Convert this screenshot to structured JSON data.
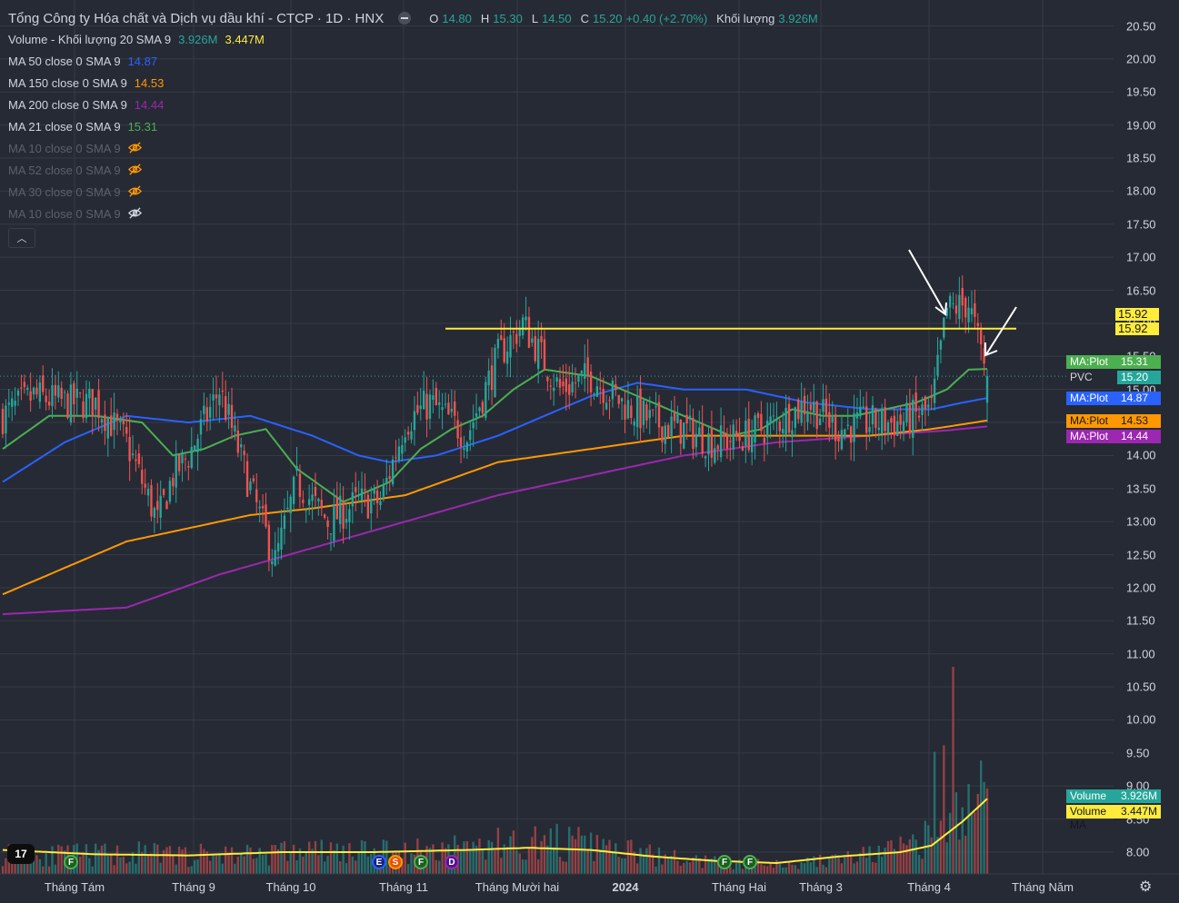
{
  "header": {
    "title": "Tổng Công ty Hóa chất và Dịch vụ dầu khí - CTCP · 1D · HNX",
    "open_label": "O",
    "open": "14.80",
    "high_label": "H",
    "high": "15.30",
    "low_label": "L",
    "low": "14.50",
    "close_label": "C",
    "close": "15.20",
    "change": "+0.40 (+2.70%)",
    "volume_label": "Khối lượng",
    "volume": "3.926M"
  },
  "indicators": [
    {
      "name": "Volume - Khối lượng 20 SMA 9",
      "v1": "3.926M",
      "c1": "#26a69a",
      "v2": "3.447M",
      "c2": "#ffeb3b"
    },
    {
      "name": "MA 50 close 0 SMA 9",
      "v1": "14.87",
      "c1": "#2962ff"
    },
    {
      "name": "MA 150 close 0 SMA 9",
      "v1": "14.53",
      "c1": "#ff9800"
    },
    {
      "name": "MA 200 close 0 SMA 9",
      "v1": "14.44",
      "c1": "#9c27b0"
    },
    {
      "name": "MA 21 close 0 SMA 9",
      "v1": "15.31",
      "c1": "#4caf50"
    }
  ],
  "hidden_indicators": [
    {
      "name": "MA 10 close 0 SMA 9",
      "icon": "eye-off-icon",
      "color": "#ff9800"
    },
    {
      "name": "MA 52 close 0 SMA 9",
      "icon": "eye-off-icon",
      "color": "#ff9800"
    },
    {
      "name": "MA 30 close 0 SMA 9",
      "icon": "eye-off-icon",
      "color": "#ff9800"
    },
    {
      "name": "MA 10 close 0 SMA 9",
      "icon": "eye-off-icon",
      "color": "#d1d4dc"
    }
  ],
  "tags": {
    "ma21": {
      "k": "MA:Plot",
      "v": "15.31"
    },
    "pvc": {
      "k": "PVC",
      "v": "15.20"
    },
    "ma50": {
      "k": "MA:Plot",
      "v": "14.87"
    },
    "ma150": {
      "k": "MA:Plot",
      "v": "14.53"
    },
    "ma200": {
      "k": "MA:Plot",
      "v": "14.44"
    },
    "hline1": "15.92",
    "hline2": "15.92",
    "volume": {
      "k": "Volume",
      "v": "3.926M"
    },
    "volume_ma": {
      "k": "Volume MA",
      "v": "3.447M"
    }
  },
  "events": [
    "F",
    "E",
    "S",
    "F",
    "D",
    "F",
    "F"
  ],
  "logo_text": "17",
  "colors": {
    "up": "#26a69a",
    "down": "#ef5350",
    "ma21": "#4caf50",
    "ma50": "#2962ff",
    "ma150": "#ff9800",
    "ma200": "#9c27b0",
    "hline": "#ffeb3b",
    "volume_ma": "#ffeb3b",
    "background": "#262a35",
    "grid": "#363a45"
  },
  "chart_data": {
    "type": "candlestick",
    "y_scale": "price",
    "ylim": [
      7.8,
      20.6
    ],
    "yticks": [
      "20.50",
      "20.00",
      "19.50",
      "19.00",
      "18.50",
      "18.00",
      "17.50",
      "17.00",
      "16.50",
      "16.00",
      "15.50",
      "15.00",
      "14.50",
      "14.00",
      "13.50",
      "13.00",
      "12.50",
      "12.00",
      "11.50",
      "11.00",
      "10.50",
      "10.00",
      "9.50",
      "9.00",
      "8.50",
      "8.00"
    ],
    "xticks": [
      "Tháng Tám",
      "Tháng 9",
      "Tháng 10",
      "Tháng 11",
      "Tháng Mười hai",
      "2024",
      "Tháng Hai",
      "Tháng 3",
      "Tháng 4",
      "Tháng Năm"
    ],
    "resistance_level": 15.92,
    "last_close": 15.2,
    "ma_last": {
      "ma21": 15.31,
      "ma50": 14.87,
      "ma150": 14.53,
      "ma200": 14.44
    },
    "anchors": {
      "close": [
        [
          0,
          14.6
        ],
        [
          10,
          14.9
        ],
        [
          20,
          14.8
        ],
        [
          30,
          14.8
        ],
        [
          40,
          14.2
        ],
        [
          50,
          13.0
        ],
        [
          55,
          13.7
        ],
        [
          60,
          14.0
        ],
        [
          70,
          15.0
        ],
        [
          80,
          13.5
        ],
        [
          88,
          12.4
        ],
        [
          95,
          13.6
        ],
        [
          105,
          13.0
        ],
        [
          115,
          13.3
        ],
        [
          122,
          13.3
        ],
        [
          130,
          14.5
        ],
        [
          138,
          14.8
        ],
        [
          150,
          14.3
        ],
        [
          160,
          15.5
        ],
        [
          168,
          16.0
        ],
        [
          180,
          15.0
        ],
        [
          190,
          15.2
        ],
        [
          200,
          14.8
        ],
        [
          210,
          14.5
        ],
        [
          220,
          14.4
        ],
        [
          230,
          14.2
        ],
        [
          240,
          14.3
        ],
        [
          250,
          14.5
        ],
        [
          260,
          14.8
        ],
        [
          270,
          14.4
        ],
        [
          280,
          14.5
        ],
        [
          290,
          14.5
        ],
        [
          300,
          14.7
        ],
        [
          305,
          16.2
        ],
        [
          312,
          16.3
        ],
        [
          318,
          15.2
        ]
      ],
      "ma21": [
        [
          0,
          14.1
        ],
        [
          15,
          14.6
        ],
        [
          30,
          14.6
        ],
        [
          45,
          14.5
        ],
        [
          55,
          14.0
        ],
        [
          65,
          14.1
        ],
        [
          75,
          14.3
        ],
        [
          85,
          14.4
        ],
        [
          95,
          13.8
        ],
        [
          110,
          13.3
        ],
        [
          125,
          13.6
        ],
        [
          135,
          14.1
        ],
        [
          145,
          14.4
        ],
        [
          155,
          14.6
        ],
        [
          165,
          15.0
        ],
        [
          175,
          15.3
        ],
        [
          190,
          15.2
        ],
        [
          205,
          14.9
        ],
        [
          220,
          14.6
        ],
        [
          235,
          14.3
        ],
        [
          245,
          14.4
        ],
        [
          255,
          14.7
        ],
        [
          265,
          14.6
        ],
        [
          275,
          14.6
        ],
        [
          285,
          14.7
        ],
        [
          295,
          14.8
        ],
        [
          305,
          15.0
        ],
        [
          312,
          15.3
        ],
        [
          318,
          15.31
        ]
      ],
      "ma50": [
        [
          0,
          13.6
        ],
        [
          20,
          14.2
        ],
        [
          40,
          14.6
        ],
        [
          60,
          14.5
        ],
        [
          80,
          14.6
        ],
        [
          100,
          14.3
        ],
        [
          115,
          14.0
        ],
        [
          125,
          13.9
        ],
        [
          140,
          14.0
        ],
        [
          160,
          14.3
        ],
        [
          175,
          14.6
        ],
        [
          190,
          14.9
        ],
        [
          205,
          15.1
        ],
        [
          220,
          15.0
        ],
        [
          240,
          15.0
        ],
        [
          260,
          14.8
        ],
        [
          280,
          14.7
        ],
        [
          300,
          14.7
        ],
        [
          310,
          14.8
        ],
        [
          318,
          14.87
        ]
      ],
      "ma150": [
        [
          0,
          11.9
        ],
        [
          40,
          12.7
        ],
        [
          80,
          13.1
        ],
        [
          100,
          13.2
        ],
        [
          130,
          13.4
        ],
        [
          160,
          13.9
        ],
        [
          190,
          14.1
        ],
        [
          220,
          14.3
        ],
        [
          250,
          14.3
        ],
        [
          280,
          14.3
        ],
        [
          300,
          14.4
        ],
        [
          318,
          14.53
        ]
      ],
      "ma200": [
        [
          0,
          11.6
        ],
        [
          40,
          11.7
        ],
        [
          70,
          12.2
        ],
        [
          100,
          12.6
        ],
        [
          130,
          13.0
        ],
        [
          160,
          13.4
        ],
        [
          190,
          13.7
        ],
        [
          220,
          14.0
        ],
        [
          250,
          14.2
        ],
        [
          280,
          14.3
        ],
        [
          305,
          14.38
        ],
        [
          318,
          14.44
        ]
      ]
    },
    "volume_anchors": [
      [
        0,
        0.9
      ],
      [
        20,
        0.8
      ],
      [
        40,
        0.9
      ],
      [
        60,
        0.8
      ],
      [
        80,
        0.9
      ],
      [
        100,
        1.0
      ],
      [
        120,
        0.9
      ],
      [
        140,
        1.1
      ],
      [
        160,
        1.3
      ],
      [
        180,
        1.4
      ],
      [
        200,
        1.0
      ],
      [
        220,
        0.6
      ],
      [
        240,
        0.4
      ],
      [
        260,
        0.5
      ],
      [
        280,
        0.8
      ],
      [
        295,
        1.2
      ],
      [
        305,
        2.0
      ],
      [
        312,
        3.0
      ],
      [
        318,
        3.926
      ]
    ],
    "volume_ma_anchors": [
      [
        0,
        1.1
      ],
      [
        30,
        0.9
      ],
      [
        60,
        0.85
      ],
      [
        90,
        1.0
      ],
      [
        120,
        1.0
      ],
      [
        150,
        1.1
      ],
      [
        170,
        1.2
      ],
      [
        190,
        1.1
      ],
      [
        210,
        0.8
      ],
      [
        230,
        0.6
      ],
      [
        250,
        0.5
      ],
      [
        270,
        0.8
      ],
      [
        290,
        1.0
      ],
      [
        300,
        1.3
      ],
      [
        310,
        2.4
      ],
      [
        318,
        3.447
      ]
    ],
    "volume_spikes": [
      [
        301,
        5.6
      ],
      [
        304,
        5.9
      ],
      [
        307,
        9.5
      ],
      [
        316,
        5.2
      ]
    ],
    "n_bars": 319
  }
}
